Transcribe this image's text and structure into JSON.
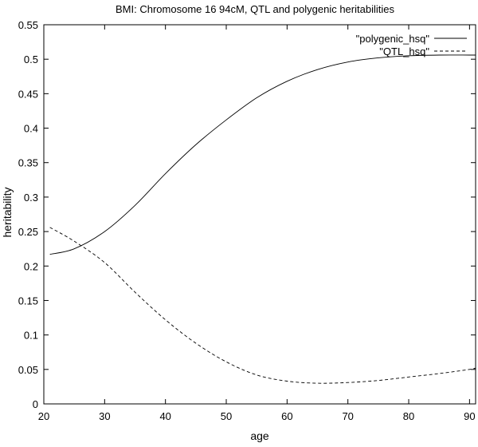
{
  "chart_data": {
    "type": "line",
    "title": "BMI: Chromosome 16 94cM, QTL and polygenic heritabilities",
    "xlabel": "age",
    "ylabel": "heritability",
    "xlim": [
      20,
      91
    ],
    "ylim": [
      0,
      0.55
    ],
    "xticks": [
      20,
      30,
      40,
      50,
      60,
      70,
      80,
      90
    ],
    "xtick_labels": [
      "20",
      "30",
      "40",
      "50",
      "60",
      "70",
      "80",
      "90"
    ],
    "yticks": [
      0,
      0.05,
      0.1,
      0.15,
      0.2,
      0.25,
      0.3,
      0.35,
      0.4,
      0.45,
      0.5,
      0.55
    ],
    "ytick_labels": [
      "0",
      "0.05",
      "0.1",
      "0.15",
      "0.2",
      "0.25",
      "0.3",
      "0.35",
      "0.4",
      "0.45",
      "0.5",
      "0.55"
    ],
    "grid": false,
    "legend_position": "top-right",
    "series": [
      {
        "name": "\"polygenic_hsq\"",
        "line_style": "solid",
        "x": [
          21,
          25,
          30,
          35,
          40,
          45,
          50,
          55,
          60,
          65,
          70,
          75,
          80,
          85,
          90,
          91
        ],
        "y": [
          0.217,
          0.225,
          0.25,
          0.288,
          0.334,
          0.376,
          0.412,
          0.444,
          0.468,
          0.485,
          0.496,
          0.502,
          0.505,
          0.506,
          0.506,
          0.506
        ]
      },
      {
        "name": "\"QTL_hsq\"",
        "line_style": "dashed",
        "x": [
          21,
          25,
          30,
          35,
          40,
          45,
          50,
          55,
          60,
          65,
          70,
          75,
          80,
          85,
          90,
          91
        ],
        "y": [
          0.256,
          0.236,
          0.205,
          0.162,
          0.122,
          0.088,
          0.061,
          0.042,
          0.033,
          0.03,
          0.031,
          0.034,
          0.039,
          0.044,
          0.05,
          0.052
        ]
      }
    ]
  }
}
